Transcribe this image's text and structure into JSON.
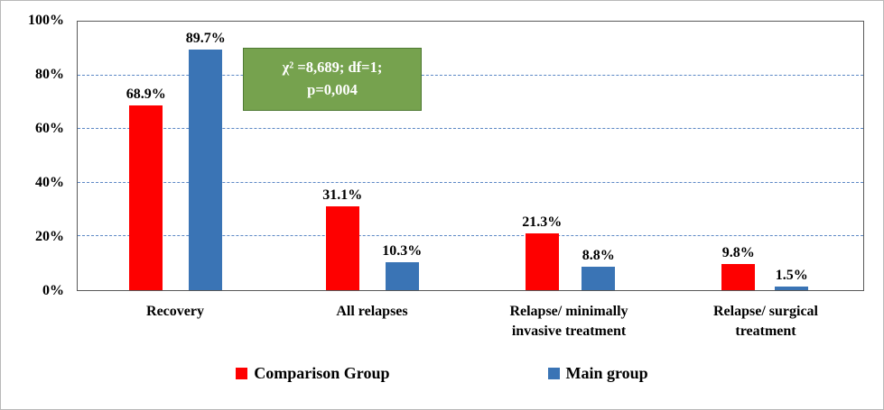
{
  "chart_data": {
    "type": "bar",
    "title": "",
    "categories": [
      "Recovery",
      "All relapses",
      "Relapse/ minimally invasive treatment",
      "Relapse/ surgical treatment"
    ],
    "series": [
      {
        "name": "Comparison Group",
        "color": "#fe0000",
        "values": [
          68.9,
          31.1,
          21.3,
          9.8
        ],
        "labels": [
          "68.9%",
          "31.1%",
          "21.3%",
          "9.8%"
        ]
      },
      {
        "name": "Main group",
        "color": "#3a74b5",
        "values": [
          89.7,
          10.3,
          8.8,
          1.5
        ],
        "labels": [
          "89.7%",
          "10.3%",
          "8.8%",
          "1.5%"
        ]
      }
    ],
    "ylim": [
      0,
      100
    ],
    "yticks": [
      "0%",
      "20%",
      "40%",
      "60%",
      "80%",
      "100%"
    ],
    "grid": "horizontal-dashed",
    "grid_color": "#5b87c5",
    "legend_position": "bottom",
    "annotation": {
      "line1": "χ² =8,689; df=1;",
      "line2": "p=0,004",
      "bg_color": "#76a24e",
      "border_color": "#4e7a33"
    }
  }
}
